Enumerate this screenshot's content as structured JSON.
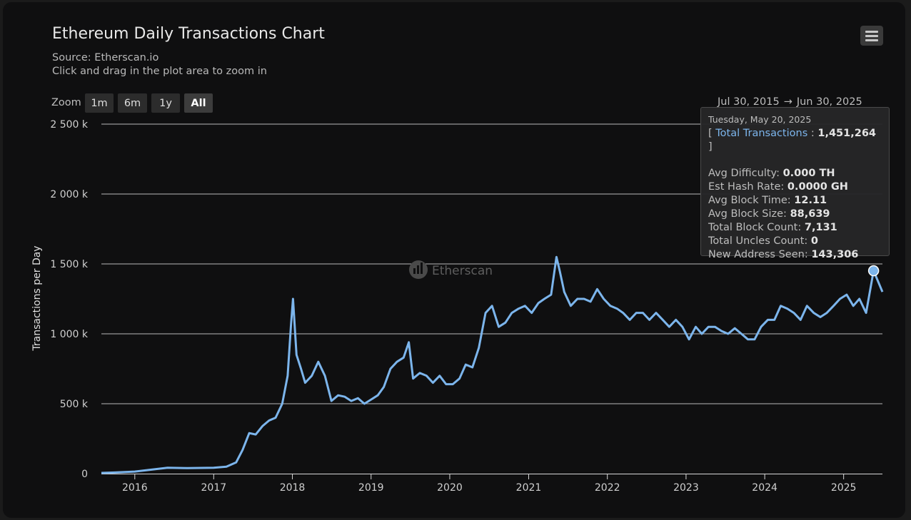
{
  "title": "Ethereum Daily Transactions Chart",
  "subtitle_line1": "Source: Etherscan.io",
  "subtitle_line2": "Click and drag in the plot area to zoom in",
  "zoom": {
    "label": "Zoom",
    "buttons": [
      "1m",
      "6m",
      "1y",
      "All"
    ],
    "active": "All"
  },
  "range": {
    "from": "Jul 30, 2015",
    "arrow": "→",
    "to": "Jun 30, 2025"
  },
  "watermark": "Etherscan",
  "colors": {
    "series": "#7cb5ec",
    "background": "#0f0f10",
    "grid": "#e6e6e6"
  },
  "tooltip": {
    "date": "Tuesday, May 20, 2025",
    "series_name": "Total Transactions",
    "series_value": "1,451,264",
    "rows": [
      {
        "label": "Avg Difficulty:",
        "value": "0.000 TH"
      },
      {
        "label": "Est Hash Rate:",
        "value": "0.0000 GH"
      },
      {
        "label": "Avg Block Time:",
        "value": "12.11"
      },
      {
        "label": "Avg Block Size:",
        "value": "88,639"
      },
      {
        "label": "Total Block Count:",
        "value": "7,131"
      },
      {
        "label": "Total Uncles Count:",
        "value": "0"
      },
      {
        "label": "New Address Seen:",
        "value": "143,306"
      }
    ]
  },
  "chart_data": {
    "type": "line",
    "ylabel": "Transactions per Day",
    "ylim": [
      0,
      2500000
    ],
    "yticks": [
      0,
      500000,
      1000000,
      1500000,
      2000000,
      2500000
    ],
    "ytick_labels": [
      "0",
      "500 k",
      "1 000 k",
      "1 500 k",
      "2 000 k",
      "2 500 k"
    ],
    "xlim": [
      "2015-07-30",
      "2025-06-30"
    ],
    "xticks": [
      "2016-01-01",
      "2017-01-01",
      "2018-01-01",
      "2019-01-01",
      "2020-01-01",
      "2021-01-01",
      "2022-01-01",
      "2023-01-01",
      "2024-01-01",
      "2025-01-01"
    ],
    "xtick_labels": [
      "2016",
      "2017",
      "2018",
      "2019",
      "2020",
      "2021",
      "2022",
      "2023",
      "2024",
      "2025"
    ],
    "grid": true,
    "legend": "none",
    "highlight_point": {
      "x": "2025-05-20",
      "y": 1451264
    },
    "series": [
      {
        "x": [
          "2015-07-30",
          "2015-10-01",
          "2016-01-01",
          "2016-03-15",
          "2016-06-01",
          "2016-09-01",
          "2017-01-01",
          "2017-03-01",
          "2017-04-15",
          "2017-05-15",
          "2017-06-15",
          "2017-07-15",
          "2017-08-15",
          "2017-09-15",
          "2017-10-15",
          "2017-11-15",
          "2017-12-10",
          "2017-12-25",
          "2018-01-04",
          "2018-01-20",
          "2018-02-10",
          "2018-03-01",
          "2018-04-01",
          "2018-05-01",
          "2018-06-01",
          "2018-07-01",
          "2018-08-01",
          "2018-09-01",
          "2018-10-01",
          "2018-11-01",
          "2018-12-01",
          "2019-01-01",
          "2019-02-01",
          "2019-03-01",
          "2019-04-01",
          "2019-05-01",
          "2019-06-01",
          "2019-06-25",
          "2019-07-15",
          "2019-08-15",
          "2019-09-15",
          "2019-10-15",
          "2019-11-15",
          "2019-12-15",
          "2020-01-15",
          "2020-02-15",
          "2020-03-15",
          "2020-04-15",
          "2020-05-15",
          "2020-06-15",
          "2020-07-15",
          "2020-08-15",
          "2020-09-15",
          "2020-10-15",
          "2020-11-15",
          "2020-12-15",
          "2021-01-15",
          "2021-02-15",
          "2021-03-15",
          "2021-04-15",
          "2021-05-10",
          "2021-05-25",
          "2021-06-15",
          "2021-07-15",
          "2021-08-15",
          "2021-09-15",
          "2021-10-15",
          "2021-11-15",
          "2021-12-15",
          "2022-01-15",
          "2022-02-15",
          "2022-03-15",
          "2022-04-15",
          "2022-05-15",
          "2022-06-15",
          "2022-07-15",
          "2022-08-15",
          "2022-09-15",
          "2022-10-15",
          "2022-11-15",
          "2022-12-15",
          "2023-01-15",
          "2023-02-15",
          "2023-03-15",
          "2023-04-15",
          "2023-05-15",
          "2023-06-15",
          "2023-07-15",
          "2023-08-15",
          "2023-09-15",
          "2023-10-15",
          "2023-11-15",
          "2023-12-15",
          "2024-01-15",
          "2024-02-15",
          "2024-03-15",
          "2024-04-15",
          "2024-05-15",
          "2024-06-15",
          "2024-07-15",
          "2024-08-15",
          "2024-09-15",
          "2024-10-15",
          "2024-11-15",
          "2024-12-15",
          "2025-01-15",
          "2025-02-15",
          "2025-03-15",
          "2025-04-15",
          "2025-05-20",
          "2025-06-30"
        ],
        "y": [
          5000,
          8000,
          15000,
          28000,
          42000,
          40000,
          42000,
          50000,
          80000,
          170000,
          290000,
          280000,
          340000,
          380000,
          400000,
          500000,
          700000,
          1050000,
          1250000,
          850000,
          750000,
          650000,
          700000,
          800000,
          700000,
          520000,
          560000,
          550000,
          520000,
          540000,
          500000,
          530000,
          560000,
          620000,
          750000,
          800000,
          830000,
          940000,
          680000,
          720000,
          700000,
          650000,
          700000,
          640000,
          640000,
          680000,
          780000,
          760000,
          900000,
          1150000,
          1200000,
          1050000,
          1080000,
          1150000,
          1180000,
          1200000,
          1150000,
          1220000,
          1250000,
          1280000,
          1550000,
          1450000,
          1300000,
          1200000,
          1250000,
          1250000,
          1230000,
          1320000,
          1250000,
          1200000,
          1180000,
          1150000,
          1100000,
          1150000,
          1150000,
          1100000,
          1150000,
          1100000,
          1050000,
          1100000,
          1050000,
          960000,
          1050000,
          1000000,
          1050000,
          1050000,
          1020000,
          1000000,
          1040000,
          1000000,
          960000,
          960000,
          1050000,
          1100000,
          1100000,
          1200000,
          1180000,
          1150000,
          1100000,
          1200000,
          1150000,
          1120000,
          1150000,
          1200000,
          1250000,
          1280000,
          1200000,
          1250000,
          1150000,
          1451264,
          1300000
        ]
      }
    ]
  }
}
